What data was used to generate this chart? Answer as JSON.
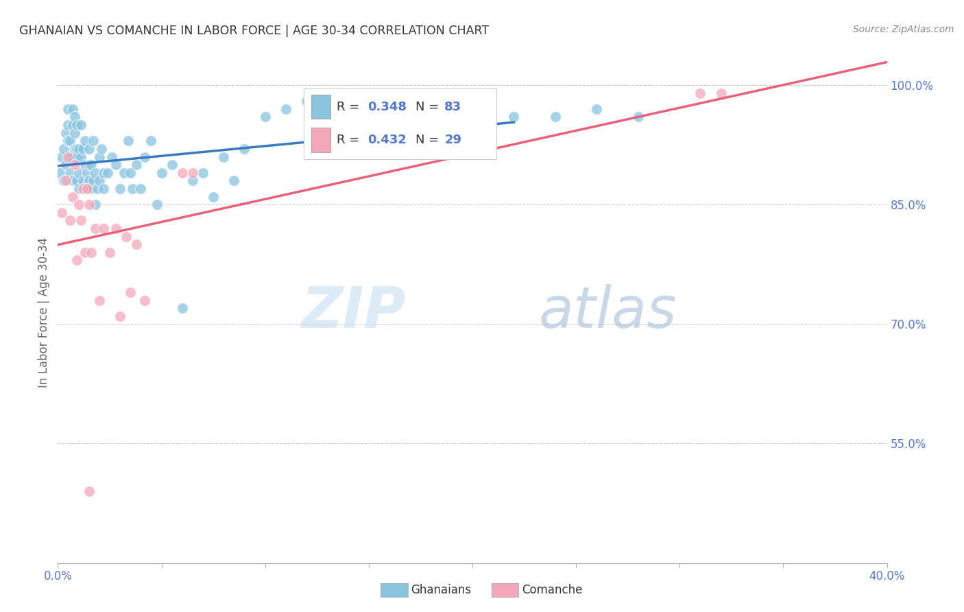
{
  "title": "GHANAIAN VS COMANCHE IN LABOR FORCE | AGE 30-34 CORRELATION CHART",
  "source": "Source: ZipAtlas.com",
  "ylabel": "In Labor Force | Age 30-34",
  "xlim": [
    0.0,
    0.4
  ],
  "ylim": [
    0.4,
    1.03
  ],
  "xticks": [
    0.0,
    0.05,
    0.1,
    0.15,
    0.2,
    0.25,
    0.3,
    0.35,
    0.4
  ],
  "yticks": [
    0.55,
    0.7,
    0.85,
    1.0
  ],
  "ytick_labels": [
    "55.0%",
    "70.0%",
    "85.0%",
    "100.0%"
  ],
  "xtick_labels": [
    "0.0%",
    "",
    "",
    "",
    "",
    "",
    "",
    "",
    "40.0%"
  ],
  "ghanaian_color": "#89c4e1",
  "comanche_color": "#f4a7b9",
  "ghanaian_line_color": "#3a7bbf",
  "comanche_line_color": "#e8607a",
  "R_ghanaian": 0.348,
  "N_ghanaian": 83,
  "R_comanche": 0.432,
  "N_comanche": 29,
  "legend_label_ghanaian": "Ghanaians",
  "legend_label_comanche": "Comanche",
  "background_color": "#ffffff",
  "grid_color": "#cccccc",
  "axis_tick_color": "#5577cc",
  "title_color": "#333333",
  "ghanaian_x": [
    0.001,
    0.002,
    0.003,
    0.003,
    0.004,
    0.004,
    0.005,
    0.005,
    0.005,
    0.006,
    0.006,
    0.006,
    0.007,
    0.007,
    0.007,
    0.007,
    0.008,
    0.008,
    0.008,
    0.009,
    0.009,
    0.009,
    0.009,
    0.01,
    0.01,
    0.01,
    0.011,
    0.011,
    0.012,
    0.012,
    0.013,
    0.013,
    0.014,
    0.014,
    0.015,
    0.015,
    0.015,
    0.016,
    0.016,
    0.017,
    0.017,
    0.018,
    0.018,
    0.019,
    0.02,
    0.02,
    0.021,
    0.022,
    0.022,
    0.024,
    0.026,
    0.028,
    0.03,
    0.032,
    0.034,
    0.035,
    0.036,
    0.038,
    0.04,
    0.042,
    0.045,
    0.048,
    0.05,
    0.055,
    0.06,
    0.065,
    0.07,
    0.075,
    0.08,
    0.085,
    0.09,
    0.1,
    0.11,
    0.12,
    0.13,
    0.15,
    0.17,
    0.19,
    0.2,
    0.22,
    0.24,
    0.26,
    0.28
  ],
  "ghanaian_y": [
    0.89,
    0.91,
    0.92,
    0.88,
    0.94,
    0.9,
    0.93,
    0.97,
    0.95,
    0.91,
    0.89,
    0.93,
    0.97,
    0.95,
    0.91,
    0.88,
    0.96,
    0.94,
    0.92,
    0.95,
    0.92,
    0.88,
    0.91,
    0.92,
    0.89,
    0.87,
    0.95,
    0.91,
    0.92,
    0.88,
    0.93,
    0.9,
    0.89,
    0.87,
    0.92,
    0.9,
    0.88,
    0.9,
    0.87,
    0.93,
    0.88,
    0.89,
    0.85,
    0.87,
    0.91,
    0.88,
    0.92,
    0.89,
    0.87,
    0.89,
    0.91,
    0.9,
    0.87,
    0.89,
    0.93,
    0.89,
    0.87,
    0.9,
    0.87,
    0.91,
    0.93,
    0.85,
    0.89,
    0.9,
    0.72,
    0.88,
    0.89,
    0.86,
    0.91,
    0.88,
    0.92,
    0.96,
    0.97,
    0.98,
    0.96,
    0.97,
    0.96,
    0.97,
    0.95,
    0.96,
    0.96,
    0.97,
    0.96
  ],
  "comanche_x": [
    0.002,
    0.004,
    0.005,
    0.006,
    0.007,
    0.008,
    0.009,
    0.01,
    0.011,
    0.012,
    0.013,
    0.014,
    0.015,
    0.016,
    0.018,
    0.02,
    0.022,
    0.025,
    0.028,
    0.03,
    0.033,
    0.035,
    0.038,
    0.042,
    0.06,
    0.065,
    0.31,
    0.32,
    0.015
  ],
  "comanche_y": [
    0.84,
    0.88,
    0.91,
    0.83,
    0.86,
    0.9,
    0.78,
    0.85,
    0.83,
    0.87,
    0.79,
    0.87,
    0.85,
    0.79,
    0.82,
    0.73,
    0.82,
    0.79,
    0.82,
    0.71,
    0.81,
    0.74,
    0.8,
    0.73,
    0.89,
    0.89,
    0.99,
    0.99,
    0.49
  ]
}
